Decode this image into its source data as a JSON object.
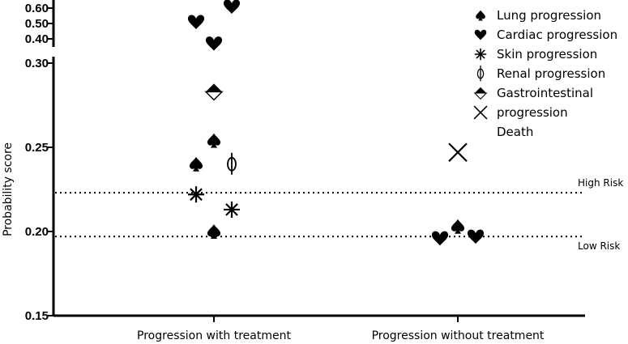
{
  "chart_data": {
    "type": "scatter",
    "ylabel": "Probability score",
    "y_scale": "broken",
    "y_segments": [
      {
        "range": [
          0.15,
          0.3
        ],
        "ticks": [
          0.15,
          0.2,
          0.25,
          0.3
        ],
        "tick_labels": [
          "0.15",
          "0.20",
          "0.25",
          "0.30"
        ]
      },
      {
        "range": [
          0.4,
          0.6
        ],
        "ticks": [
          0.4,
          0.5,
          0.6
        ],
        "tick_labels": [
          "0.40",
          "0.50",
          "0.60"
        ]
      }
    ],
    "categories": [
      "Progression with treatment",
      "Progression without treatment"
    ],
    "reference_lines": [
      {
        "label": "High Risk",
        "y": 0.223,
        "style": "dotted"
      },
      {
        "label": "Low Risk",
        "y": 0.197,
        "style": "dotted"
      }
    ],
    "legend": {
      "position": "top-right",
      "lines": [
        "Lung progression",
        "Cardiac progression",
        "Skin progression",
        "Renal progression",
        "Gastrointestinal",
        "progression",
        "Death"
      ],
      "symbols": [
        "spade",
        "heart",
        "asterisk",
        "phi",
        "half-diamond",
        "cross"
      ]
    },
    "points": [
      {
        "category": "Progression with treatment",
        "marker": "heart",
        "y": 0.51,
        "offset": -0.3
      },
      {
        "category": "Progression with treatment",
        "marker": "heart",
        "y": 0.61,
        "offset": 0.3
      },
      {
        "category": "Progression with treatment",
        "marker": "heart",
        "y": 0.37,
        "offset": 0
      },
      {
        "category": "Progression with treatment",
        "marker": "half-diamond",
        "y": 0.283,
        "offset": 0
      },
      {
        "category": "Progression with treatment",
        "marker": "spade",
        "y": 0.254,
        "offset": 0
      },
      {
        "category": "Progression with treatment",
        "marker": "spade",
        "y": 0.24,
        "offset": -0.3
      },
      {
        "category": "Progression with treatment",
        "marker": "phi",
        "y": 0.24,
        "offset": 0.3
      },
      {
        "category": "Progression with treatment",
        "marker": "asterisk",
        "y": 0.222,
        "offset": -0.3
      },
      {
        "category": "Progression with treatment",
        "marker": "asterisk",
        "y": 0.213,
        "offset": 0.3
      },
      {
        "category": "Progression with treatment",
        "marker": "spade",
        "y": 0.2,
        "offset": 0
      },
      {
        "category": "Progression without treatment",
        "marker": "cross",
        "y": 0.247,
        "offset": 0
      },
      {
        "category": "Progression without treatment",
        "marker": "spade",
        "y": 0.203,
        "offset": 0
      },
      {
        "category": "Progression without treatment",
        "marker": "heart",
        "y": 0.196,
        "offset": -0.3
      },
      {
        "category": "Progression without treatment",
        "marker": "heart",
        "y": 0.197,
        "offset": 0.3
      }
    ]
  }
}
